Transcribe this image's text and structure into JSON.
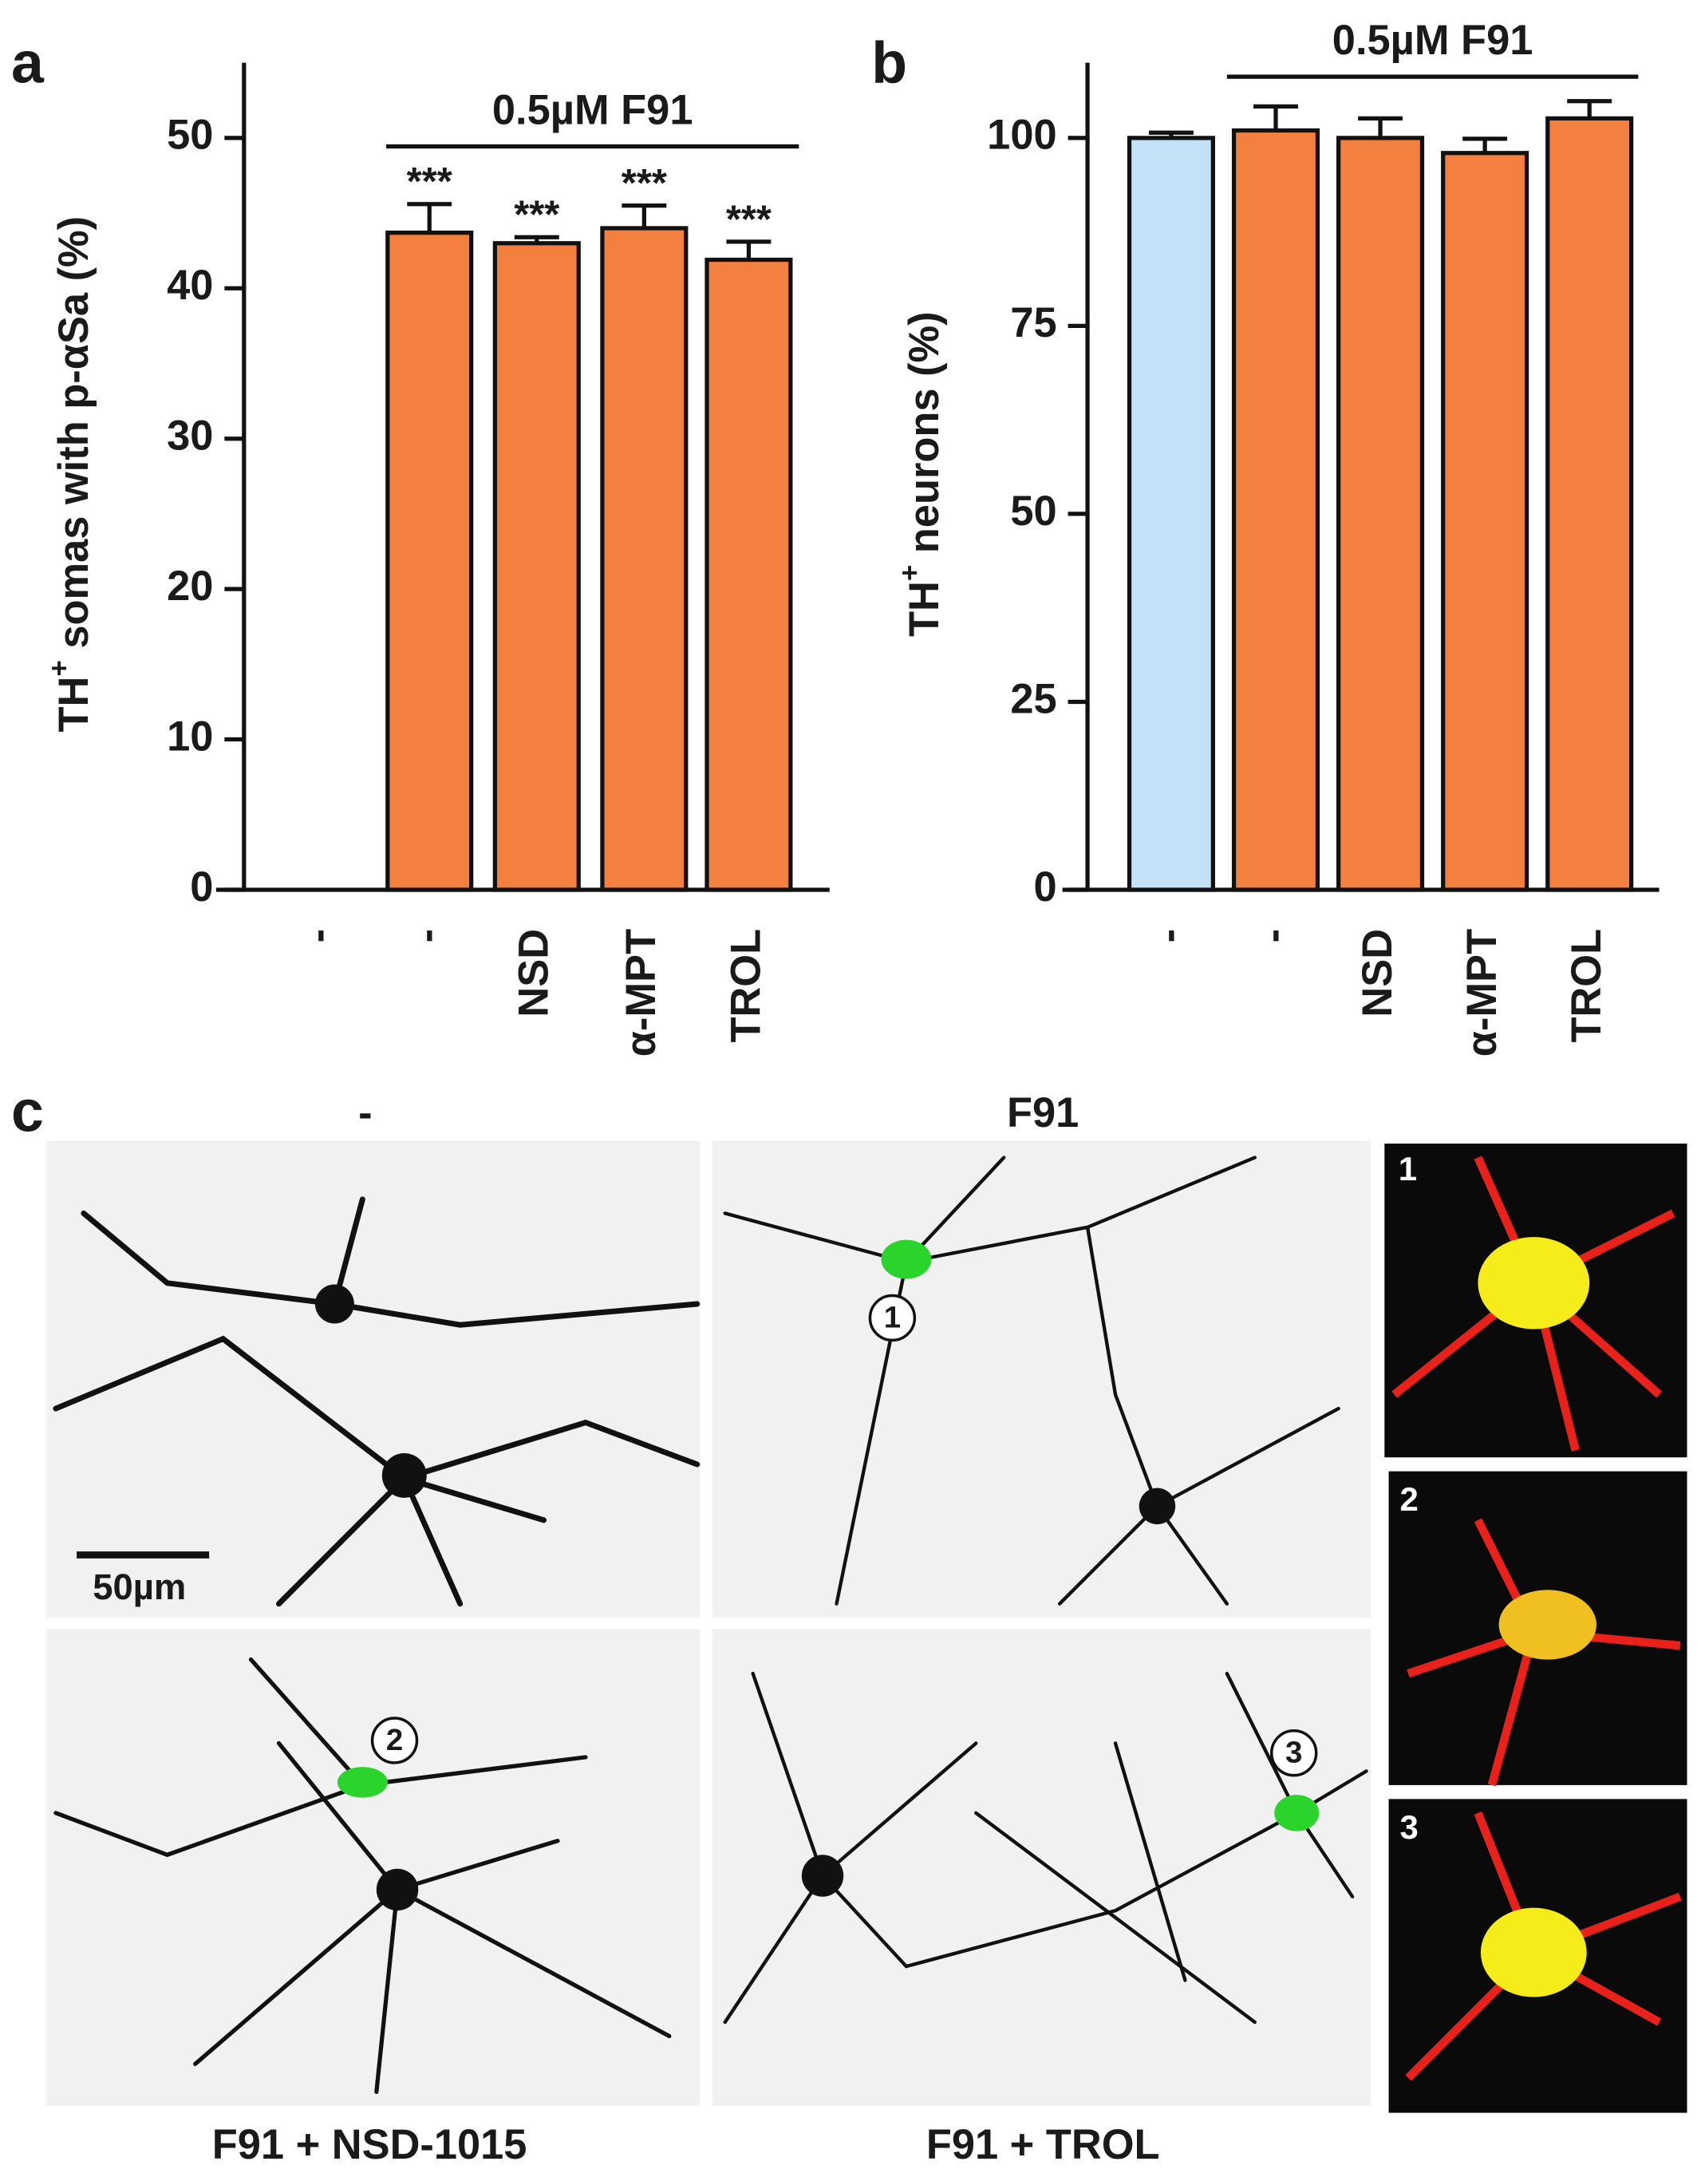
{
  "chart_data": [
    {
      "type": "bar",
      "panel_label": "a",
      "ylabel": {
        "base": "TH",
        "sup": "+",
        "rest": " somas with p-αSa (%)"
      },
      "categories": [
        "-",
        "-",
        "NSD",
        "α-MPT",
        "TROL"
      ],
      "values": [
        null,
        43.7,
        43.0,
        44.0,
        41.9
      ],
      "errors": [
        null,
        1.9,
        0.4,
        1.5,
        1.2
      ],
      "annotations": [
        null,
        "***",
        "***",
        "***",
        "***"
      ],
      "colors": [
        null,
        "#f4803f",
        "#f4803f",
        "#f4803f",
        "#f4803f"
      ],
      "annotation_bracket": "0.5µM F91",
      "ylim": [
        0,
        55
      ],
      "yticks": [
        0,
        10,
        20,
        30,
        40,
        50
      ]
    },
    {
      "type": "bar",
      "panel_label": "b",
      "ylabel": {
        "base": "TH",
        "sup": "+",
        "rest": " neurons (%)"
      },
      "categories": [
        "-",
        "-",
        "NSD",
        "α-MPT",
        "TROL"
      ],
      "values": [
        100,
        101,
        100,
        98,
        102.6
      ],
      "errors": [
        0.7,
        3.2,
        2.6,
        1.9,
        2.3
      ],
      "colors": [
        "#c3e1f7",
        "#f4803f",
        "#f4803f",
        "#f4803f",
        "#f4803f"
      ],
      "annotation_bracket": "0.5µM F91",
      "ylim": [
        0,
        110
      ],
      "yticks": [
        0,
        25,
        50,
        75,
        100
      ]
    }
  ],
  "panel_c": {
    "label": "c",
    "captions": {
      "top_left": "-",
      "top_right": "F91",
      "bottom_left": "F91 + NSD-1015",
      "bottom_right": "F91 + TROL"
    },
    "scale_bar": "50µm",
    "markers": [
      "1",
      "2",
      "3"
    ],
    "inset_labels": [
      "1",
      "2",
      "3"
    ]
  }
}
